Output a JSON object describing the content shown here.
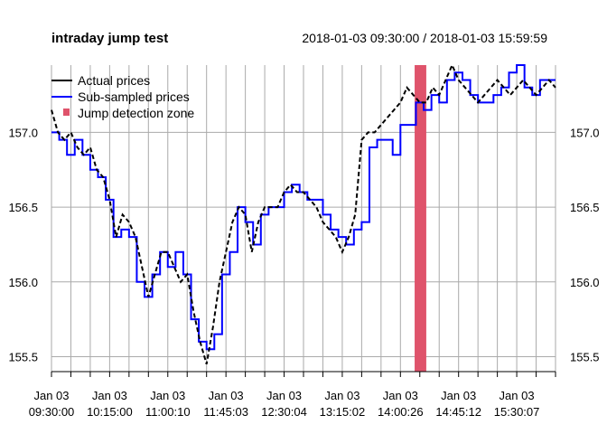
{
  "chart_data": {
    "type": "line",
    "title": "intraday jump test",
    "date_range": "2018-01-03 09:30:00 / 2018-01-03 15:59:59",
    "x_range": [
      "09:30:00",
      "15:59:59"
    ],
    "x_tick_labels": [
      {
        "date": "Jan 03",
        "time": "09:30:00"
      },
      {
        "date": "Jan 03",
        "time": "10:15:00"
      },
      {
        "date": "Jan 03",
        "time": "11:00:10"
      },
      {
        "date": "Jan 03",
        "time": "11:45:03"
      },
      {
        "date": "Jan 03",
        "time": "12:30:04"
      },
      {
        "date": "Jan 03",
        "time": "13:15:02"
      },
      {
        "date": "Jan 03",
        "time": "14:00:26"
      },
      {
        "date": "Jan 03",
        "time": "14:45:12"
      },
      {
        "date": "Jan 03",
        "time": "15:30:07"
      }
    ],
    "y_ticks": [
      155.5,
      156.0,
      156.5,
      157.0
    ],
    "y_tick_labels": [
      "155.5",
      "156.0",
      "156.5",
      "157.0"
    ],
    "ylim": [
      155.4,
      157.45
    ],
    "grid": true,
    "legend_position": "top-left",
    "legend": [
      "Actual prices",
      "Sub-sampled prices",
      "Jump detection zone"
    ],
    "jump_zone": {
      "start_minute": 281,
      "end_minute": 290
    },
    "series": [
      {
        "name": "Actual prices",
        "color": "#000000",
        "style": "dashed",
        "x_minutes": [
          0,
          5,
          10,
          15,
          20,
          25,
          30,
          35,
          40,
          45,
          50,
          55,
          60,
          65,
          70,
          75,
          80,
          85,
          90,
          95,
          100,
          105,
          110,
          115,
          120,
          125,
          130,
          135,
          140,
          145,
          150,
          155,
          160,
          165,
          170,
          175,
          180,
          185,
          190,
          195,
          200,
          205,
          210,
          215,
          220,
          225,
          230,
          235,
          240,
          245,
          250,
          255,
          260,
          265,
          270,
          275,
          280,
          285,
          290,
          295,
          300,
          305,
          310,
          315,
          320,
          325,
          330,
          335,
          340,
          345,
          350,
          355,
          360,
          365,
          370,
          375,
          380,
          385,
          390
        ],
        "values": [
          157.15,
          157.0,
          156.95,
          157.0,
          156.9,
          156.85,
          156.9,
          156.75,
          156.7,
          156.55,
          156.3,
          156.45,
          156.4,
          156.3,
          156.1,
          155.9,
          156.05,
          156.2,
          156.2,
          156.1,
          156.0,
          156.05,
          155.8,
          155.6,
          155.45,
          155.7,
          156.0,
          156.2,
          156.4,
          156.5,
          156.45,
          156.2,
          156.4,
          156.5,
          156.5,
          156.5,
          156.6,
          156.65,
          156.6,
          156.6,
          156.55,
          156.5,
          156.4,
          156.35,
          156.3,
          156.2,
          156.3,
          156.45,
          156.95,
          157.0,
          157.0,
          157.05,
          157.1,
          157.15,
          157.2,
          157.3,
          157.25,
          157.2,
          157.2,
          157.3,
          157.25,
          157.35,
          157.45,
          157.35,
          157.3,
          157.25,
          157.2,
          157.25,
          157.3,
          157.35,
          157.3,
          157.25,
          157.3,
          157.35,
          157.3,
          157.25,
          157.3,
          157.35,
          157.3
        ]
      },
      {
        "name": "Sub-sampled prices",
        "color": "#0000ff",
        "style": "step",
        "x_minutes": [
          0,
          6,
          12,
          18,
          24,
          30,
          36,
          42,
          48,
          54,
          60,
          66,
          72,
          78,
          84,
          90,
          96,
          102,
          108,
          114,
          120,
          126,
          132,
          138,
          144,
          150,
          156,
          162,
          168,
          174,
          180,
          186,
          192,
          198,
          204,
          210,
          216,
          222,
          228,
          234,
          240,
          246,
          252,
          258,
          264,
          270,
          276,
          282,
          288,
          294,
          300,
          306,
          312,
          318,
          324,
          330,
          336,
          342,
          348,
          354,
          360,
          366,
          372,
          378,
          384
        ],
        "values": [
          157.0,
          156.95,
          156.85,
          156.95,
          156.85,
          156.75,
          156.7,
          156.55,
          156.3,
          156.35,
          156.3,
          156.0,
          155.9,
          156.05,
          156.2,
          156.1,
          156.2,
          156.05,
          155.75,
          155.6,
          155.55,
          155.65,
          156.05,
          156.2,
          156.5,
          156.4,
          156.25,
          156.45,
          156.5,
          156.5,
          156.6,
          156.65,
          156.6,
          156.55,
          156.55,
          156.45,
          156.35,
          156.3,
          156.25,
          156.35,
          156.4,
          156.9,
          156.95,
          156.95,
          156.85,
          157.05,
          157.05,
          157.2,
          157.15,
          157.25,
          157.2,
          157.35,
          157.4,
          157.35,
          157.25,
          157.2,
          157.2,
          157.25,
          157.3,
          157.4,
          157.45,
          157.3,
          157.25,
          157.35,
          157.35
        ]
      }
    ],
    "colors": {
      "actual": "#000000",
      "subsampled": "#0000ff",
      "jump_zone": "#df536b",
      "grid": "#aaaaaa"
    }
  }
}
